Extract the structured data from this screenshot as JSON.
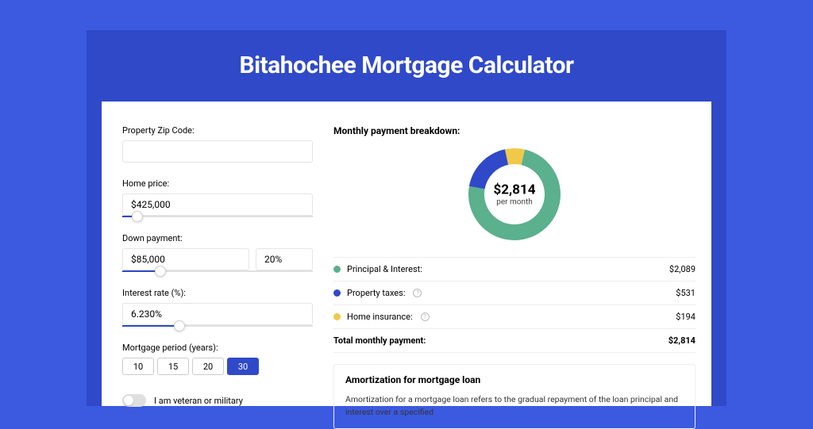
{
  "page": {
    "title": "Bitahochee Mortgage Calculator",
    "colors": {
      "page_bg": "#3b5ae0",
      "frame_bg": "#2f49c9",
      "card_bg": "#ffffff",
      "accent": "#2f49c9"
    }
  },
  "form": {
    "zip": {
      "label": "Property Zip Code:",
      "value": ""
    },
    "home_price": {
      "label": "Home price:",
      "value": "$425,000",
      "slider_pct": 8
    },
    "down_payment": {
      "label": "Down payment:",
      "amount": "$85,000",
      "percent": "20%",
      "slider_pct": 20
    },
    "interest_rate": {
      "label": "Interest rate (%):",
      "value": "6.230%",
      "slider_pct": 30
    },
    "period": {
      "label": "Mortgage period (years):",
      "options": [
        "10",
        "15",
        "20",
        "30"
      ],
      "selected": "30"
    },
    "veteran": {
      "label": "I am veteran or military",
      "checked": false
    }
  },
  "breakdown": {
    "header": "Monthly payment breakdown:",
    "donut": {
      "center_amount": "$2,814",
      "center_sub": "per month",
      "segments": [
        {
          "label": "Principal & Interest:",
          "value": "$2,089",
          "color": "#5bb08e",
          "angle": 267
        },
        {
          "label": "Property taxes:",
          "value": "$531",
          "color": "#2f49c9",
          "angle": 68,
          "help": true
        },
        {
          "label": "Home insurance:",
          "value": "$194",
          "color": "#f0c94a",
          "angle": 25,
          "help": true
        }
      ]
    },
    "total": {
      "label": "Total monthly payment:",
      "value": "$2,814"
    }
  },
  "amortization": {
    "title": "Amortization for mortgage loan",
    "text": "Amortization for a mortgage loan refers to the gradual repayment of the loan principal and interest over a specified"
  }
}
